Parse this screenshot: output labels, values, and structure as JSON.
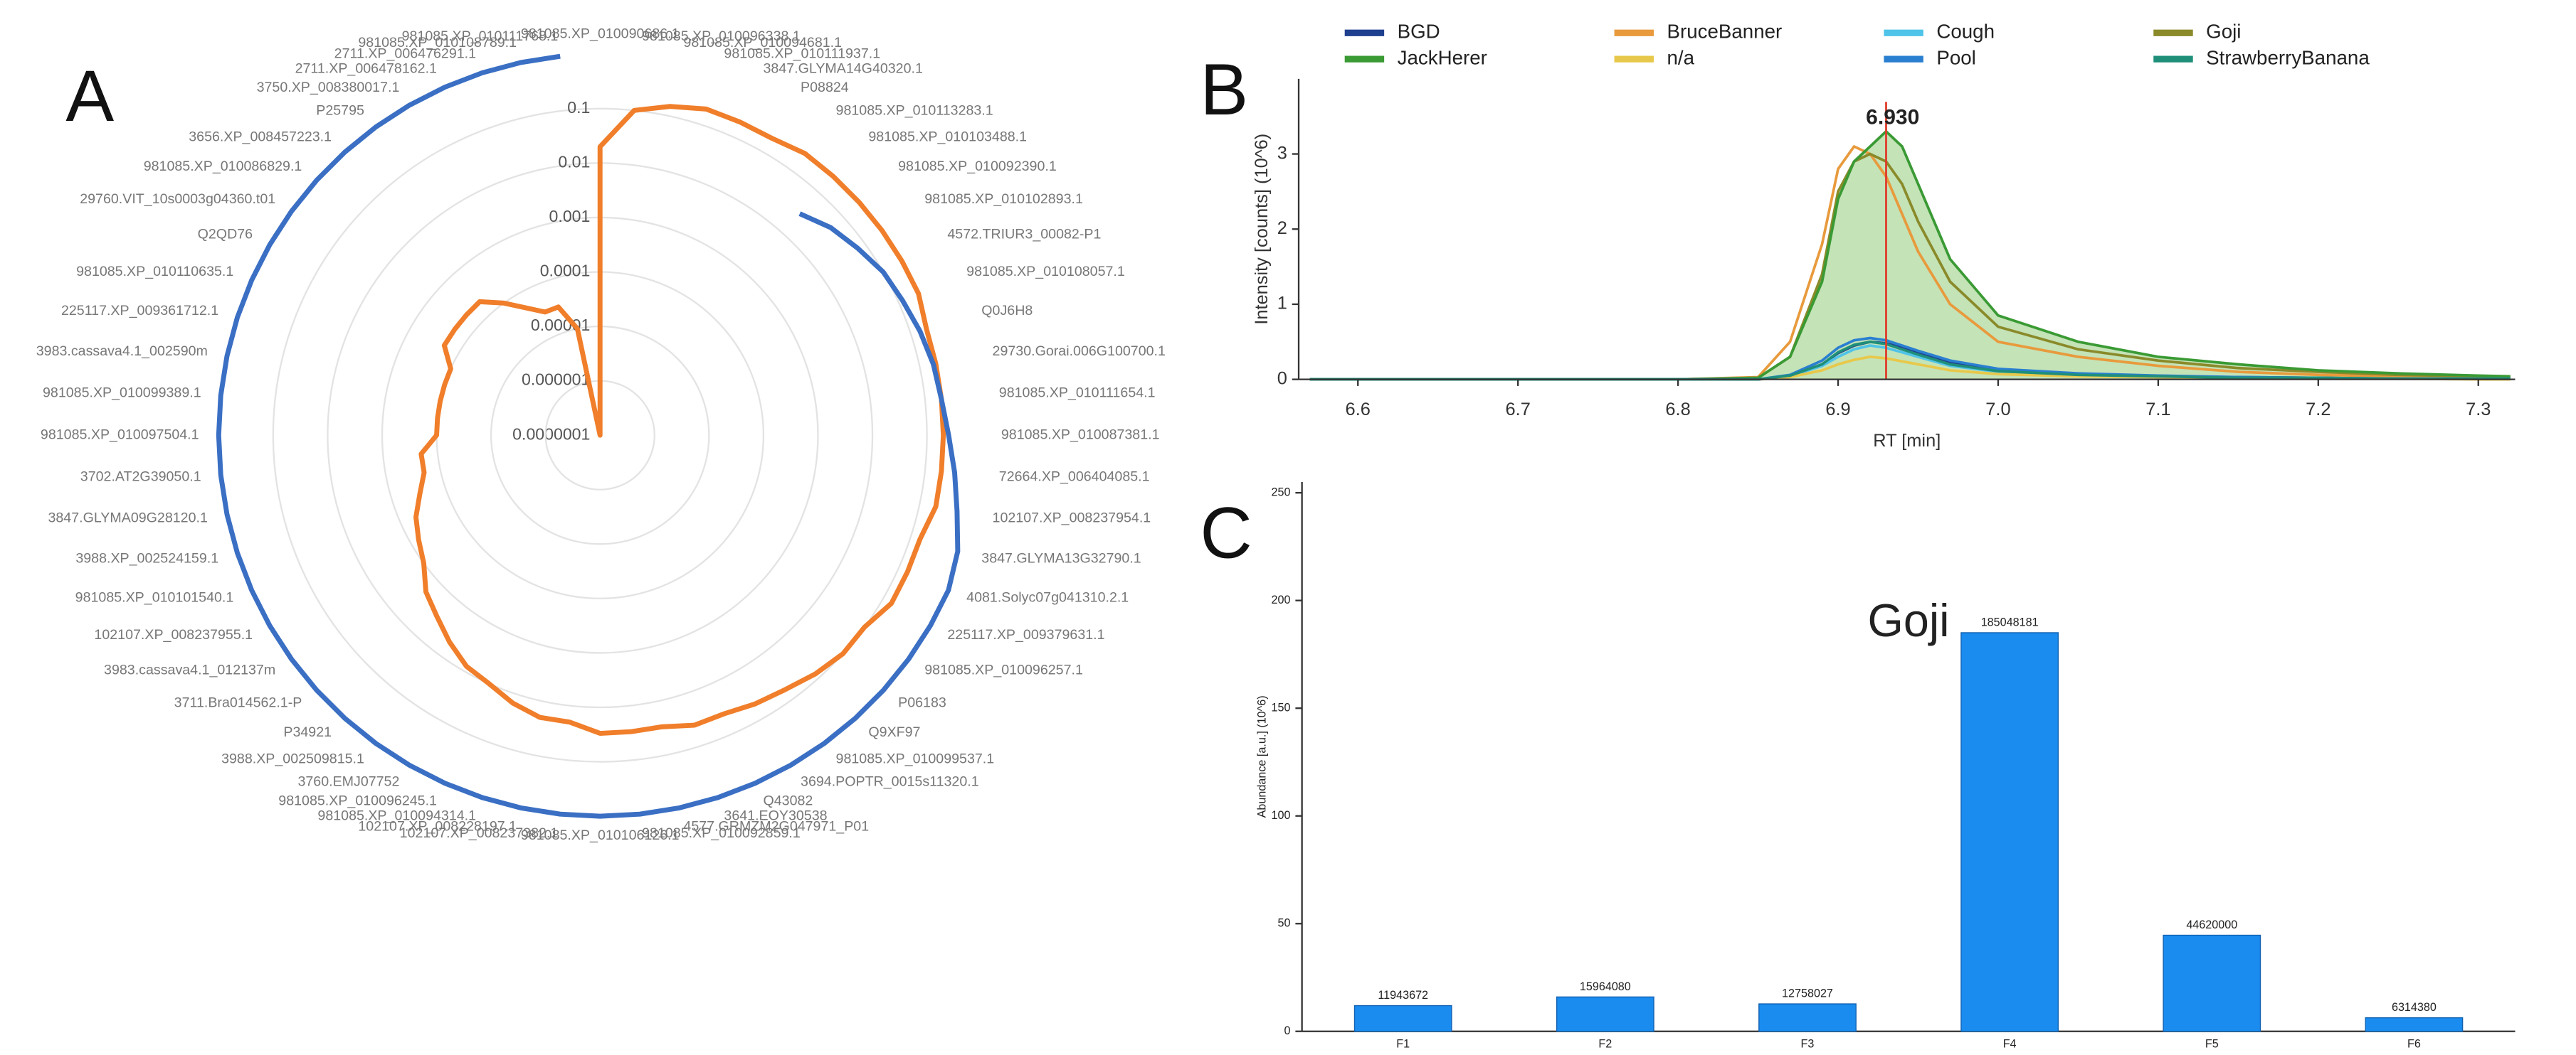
{
  "chart_data": [
    {
      "type": "polar",
      "panel_label": "A",
      "log_scale": true,
      "rlim": [
        1e-07,
        1
      ],
      "rticks": [
        {
          "value": 1e-07,
          "label": "0.0000001"
        },
        1e-06,
        1e-05,
        0.0001,
        0.001,
        0.01,
        0.1
      ],
      "grid": true,
      "categories": [
        "981085.XP_010090686.1",
        "981085.XP_010096338.1",
        "981085.XP_010094681.1",
        "981085.XP_010111937.1",
        "3847.GLYMA14G40320.1",
        "P08824",
        "981085.XP_010113283.1",
        "981085.XP_010103488.1",
        "981085.XP_010092390.1",
        "981085.XP_010102893.1",
        "4572.TRIUR3_00082-P1",
        "981085.XP_010108057.1",
        "Q0J6H8",
        "29730.Gorai.006G100700.1",
        "981085.XP_010111654.1",
        "981085.XP_010087381.1",
        "72664.XP_006404085.1",
        "102107.XP_008237954.1",
        "3847.GLYMA13G32790.1",
        "4081.Solyc07g041310.2.1",
        "225117.XP_009379631.1",
        "981085.XP_010096257.1",
        "P06183",
        "Q9XF97",
        "981085.XP_010099537.1",
        "3694.POPTR_0015s11320.1",
        "Q43082",
        "3641.EOY30538",
        "4577.GRMZM2G047971_P01",
        "981085.XP_010092859.1",
        "981085.XP_010106126.1",
        "102107.XP_008237382.1",
        "102107.XP_008228197.1",
        "981085.XP_010094314.1",
        "981085.XP_010096245.1",
        "3760.EMJ07752",
        "3988.XP_002509815.1",
        "P34921",
        "3711.Bra014562.1-P",
        "3983.cassava4.1_012137m",
        "102107.XP_008237955.1",
        "981085.XP_010101540.1",
        "3988.XP_002524159.1",
        "3847.GLYMA09G28120.1",
        "3702.AT2G39050.1",
        "981085.XP_010097504.1",
        "981085.XP_010099389.1",
        "3983.cassava4.1_002590m",
        "225117.XP_009361712.1",
        "981085.XP_010110635.1",
        "Q2QD76",
        "29760.VIT_10s0003g04360.t01",
        "981085.XP_010086829.1",
        "3656.XP_008457223.1",
        "P25795",
        "3750.XP_008380017.1",
        "2711.XP_006478162.1",
        "2711.XP_006476291.1",
        "981085.XP_010108789.1",
        "981085.XP_010111768.1"
      ],
      "series": [
        {
          "color": "#f07e2a",
          "values": [
            0.02,
            0.1,
            0.15,
            0.2,
            0.2,
            0.2,
            0.25,
            0.25,
            0.25,
            0.25,
            0.25,
            0.25,
            0.2,
            0.2,
            0.2,
            0.2,
            0.2,
            0.2,
            0.15,
            0.15,
            0.15,
            0.1,
            0.1,
            0.08,
            0.06,
            0.05,
            0.04,
            0.04,
            0.03,
            0.03,
            0.03,
            0.02,
            0.02,
            0.015,
            0.01,
            0.008,
            0.005,
            0.003,
            0.002,
            0.001,
            0.0007,
            0.0005,
            0.0003,
            0.0002,
            0.0002,
            0.0001,
            0.0001,
            0.0001,
            0.0001,
            0.0001,
            0.0002,
            0.0002,
            0.0002,
            0.0002,
            0.0001,
            5e-05,
            3e-05,
            3e-05,
            1e-05,
            1e-07
          ]
        },
        {
          "color": "#3a6fc4",
          "values": [
            1,
            null,
            null,
            null,
            null,
            null,
            null,
            0.03,
            0.05,
            0.07,
            0.1,
            0.12,
            0.15,
            0.18,
            0.2,
            0.25,
            0.35,
            0.5,
            0.8,
            1,
            1,
            1,
            1,
            1,
            1,
            1,
            1,
            1,
            1,
            1,
            1,
            1,
            1,
            1,
            1,
            1,
            1,
            1,
            1,
            1,
            1,
            1,
            1,
            1,
            1,
            1,
            1,
            1,
            1,
            1,
            1,
            1,
            1,
            1,
            1,
            1,
            1,
            1,
            1,
            1
          ]
        }
      ]
    },
    {
      "type": "line",
      "panel_label": "B",
      "xlabel": "RT [min]",
      "ylabel": "Intensity [counts] (10^6)",
      "xlim": [
        6.563,
        7.323
      ],
      "ylim": [
        0,
        4
      ],
      "xticks": [
        6.6,
        6.7,
        6.8,
        6.9,
        {
          "value": 7,
          "label": "7.0"
        },
        7.1,
        7.2,
        7.3
      ],
      "yticks": [
        0,
        1,
        2,
        3
      ],
      "annotation": {
        "label": "6.930",
        "x": 6.93,
        "color": "#e03a2a"
      },
      "x": [
        6.57,
        6.6,
        6.7,
        6.8,
        6.85,
        6.87,
        6.89,
        6.9,
        6.91,
        6.92,
        6.93,
        6.94,
        6.95,
        6.97,
        7.0,
        7.05,
        7.1,
        7.15,
        7.2,
        7.25,
        7.3,
        7.32
      ],
      "series": [
        {
          "name": "BGD",
          "color": "#1f3f8f",
          "values": [
            0,
            0,
            0,
            0,
            0,
            0.05,
            0.2,
            0.35,
            0.45,
            0.5,
            0.48,
            0.42,
            0.35,
            0.22,
            0.12,
            0.07,
            0.04,
            0.03,
            0.02,
            0.01,
            0.01,
            0.01
          ]
        },
        {
          "name": "BruceBanner",
          "color": "#e89a3c",
          "values": [
            0,
            0,
            0,
            0,
            0.03,
            0.5,
            1.8,
            2.8,
            3.1,
            3.0,
            2.7,
            2.2,
            1.7,
            1.0,
            0.5,
            0.3,
            0.18,
            0.1,
            0.06,
            0.04,
            0.03,
            0.02
          ]
        },
        {
          "name": "Cough",
          "color": "#4fc3e8",
          "values": [
            0,
            0,
            0,
            0,
            0,
            0.04,
            0.18,
            0.3,
            0.4,
            0.45,
            0.42,
            0.36,
            0.3,
            0.18,
            0.1,
            0.06,
            0.04,
            0.02,
            0.01,
            0.01,
            0.01,
            0.01
          ]
        },
        {
          "name": "Goji",
          "color": "#8a8a2a",
          "values": [
            0,
            0,
            0,
            0,
            0.02,
            0.3,
            1.4,
            2.5,
            2.9,
            3.0,
            2.9,
            2.6,
            2.1,
            1.3,
            0.7,
            0.4,
            0.25,
            0.15,
            0.1,
            0.06,
            0.04,
            0.03
          ]
        },
        {
          "name": "JackHerer",
          "color": "#3a9a34",
          "fill": "#b5dca5",
          "values": [
            0,
            0,
            0,
            0,
            0.02,
            0.3,
            1.3,
            2.4,
            2.9,
            3.1,
            3.3,
            3.1,
            2.6,
            1.6,
            0.85,
            0.5,
            0.3,
            0.2,
            0.12,
            0.08,
            0.05,
            0.04
          ]
        },
        {
          "name": "n/a",
          "color": "#e8c84a",
          "values": [
            0,
            0,
            0,
            0,
            0,
            0.03,
            0.12,
            0.2,
            0.26,
            0.3,
            0.28,
            0.24,
            0.2,
            0.12,
            0.07,
            0.04,
            0.03,
            0.02,
            0.01,
            0.01,
            0,
            0
          ]
        },
        {
          "name": "Pool",
          "color": "#2a7fd0",
          "values": [
            0,
            0,
            0,
            0,
            0,
            0.06,
            0.25,
            0.42,
            0.52,
            0.55,
            0.52,
            0.45,
            0.38,
            0.25,
            0.14,
            0.08,
            0.05,
            0.03,
            0.02,
            0.01,
            0.01,
            0.01
          ]
        },
        {
          "name": "StrawberryBanana",
          "color": "#1f8f7a",
          "values": [
            0,
            0,
            0,
            0,
            0,
            0.05,
            0.2,
            0.36,
            0.46,
            0.5,
            0.47,
            0.4,
            0.33,
            0.2,
            0.11,
            0.06,
            0.04,
            0.02,
            0.02,
            0.01,
            0.01,
            0.01
          ]
        }
      ]
    },
    {
      "type": "bar",
      "panel_label": "C",
      "title": "Goji",
      "ylabel": "Abundance [a.u.] (10^6)",
      "categories": [
        "F1",
        "F2",
        "F3",
        "F4",
        "F5",
        "F6"
      ],
      "values": [
        11.943672,
        15.96408,
        12.758027,
        185.048181,
        44.62,
        6.31438
      ],
      "value_labels": [
        "11943672",
        "15964080",
        "12758027",
        "185048181",
        "44620000",
        "6314380"
      ],
      "color": "#1a8cf0",
      "ylim": [
        0,
        255
      ],
      "yticks": [
        0,
        50,
        100,
        150,
        200,
        250
      ]
    }
  ]
}
